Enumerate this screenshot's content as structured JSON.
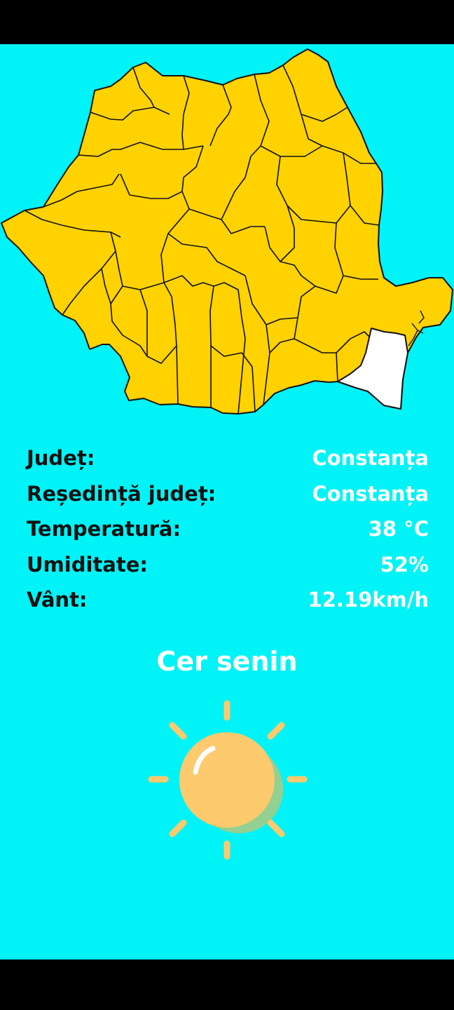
{
  "map": {
    "selected_county": "Constanța",
    "fill_color": "#ffd200",
    "selected_fill_color": "#ffffff",
    "border_color": "#111111"
  },
  "info": {
    "county_label": "Județ:",
    "county_value": "Constanța",
    "seat_label": "Reședință județ:",
    "seat_value": "Constanța",
    "temperature_label": "Temperatură:",
    "temperature_value": "38 °C",
    "humidity_label": "Umiditate:",
    "humidity_value": "52%",
    "wind_label": "Vânt:",
    "wind_value": "12.19km/h"
  },
  "weather": {
    "condition": "Cer senin",
    "icon": "sun-icon",
    "sun_color": "#fdca6e"
  },
  "colors": {
    "background": "#00f3f7",
    "label": "#111111",
    "value": "#ffffff"
  }
}
